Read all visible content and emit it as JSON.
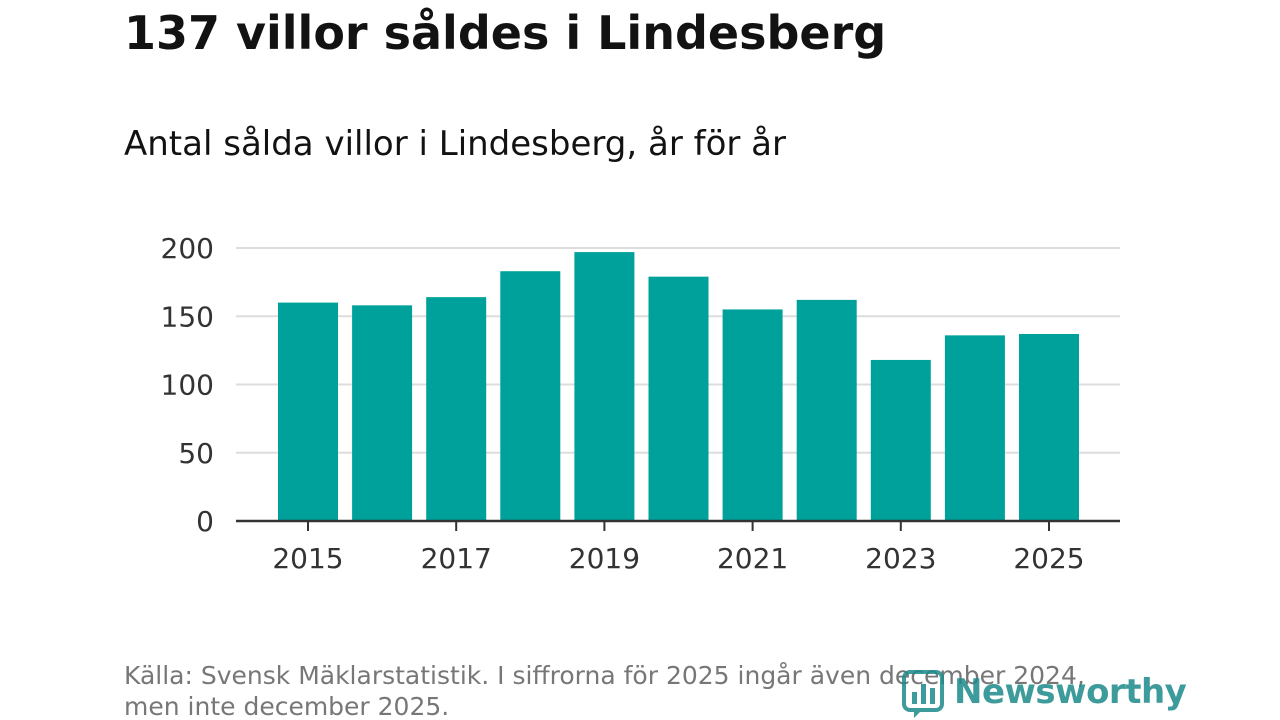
{
  "header": {
    "title": "137 villor såldes i Lindesberg",
    "subtitle": "Antal sålda villor i Lindesberg, år för år"
  },
  "chart_data": {
    "type": "bar",
    "title": "137 villor såldes i Lindesberg",
    "subtitle": "Antal sålda villor i Lindesberg, år för år",
    "categories": [
      "2015",
      "2016",
      "2017",
      "2018",
      "2019",
      "2020",
      "2021",
      "2022",
      "2023",
      "2024",
      "2025"
    ],
    "values": [
      160,
      158,
      164,
      183,
      197,
      179,
      155,
      162,
      118,
      136,
      137
    ],
    "x_tick_labels": [
      "2015",
      "2017",
      "2019",
      "2021",
      "2023",
      "2025"
    ],
    "y_ticks": [
      "0",
      "50",
      "100",
      "150",
      "200"
    ],
    "ylim": [
      0,
      200
    ],
    "xlabel": "",
    "ylabel": "",
    "grid": true,
    "bar_color": "#00a19a"
  },
  "footer": {
    "source_line1": "Källa: Svensk Mäklarstatistik. I siffrorna för 2025 ingår även december 2024,",
    "source_line2": "men inte december 2025.",
    "logo_text": "Newsworthy",
    "logo_icon": "bar-chart-icon",
    "logo_color": "#1d8a8a"
  }
}
